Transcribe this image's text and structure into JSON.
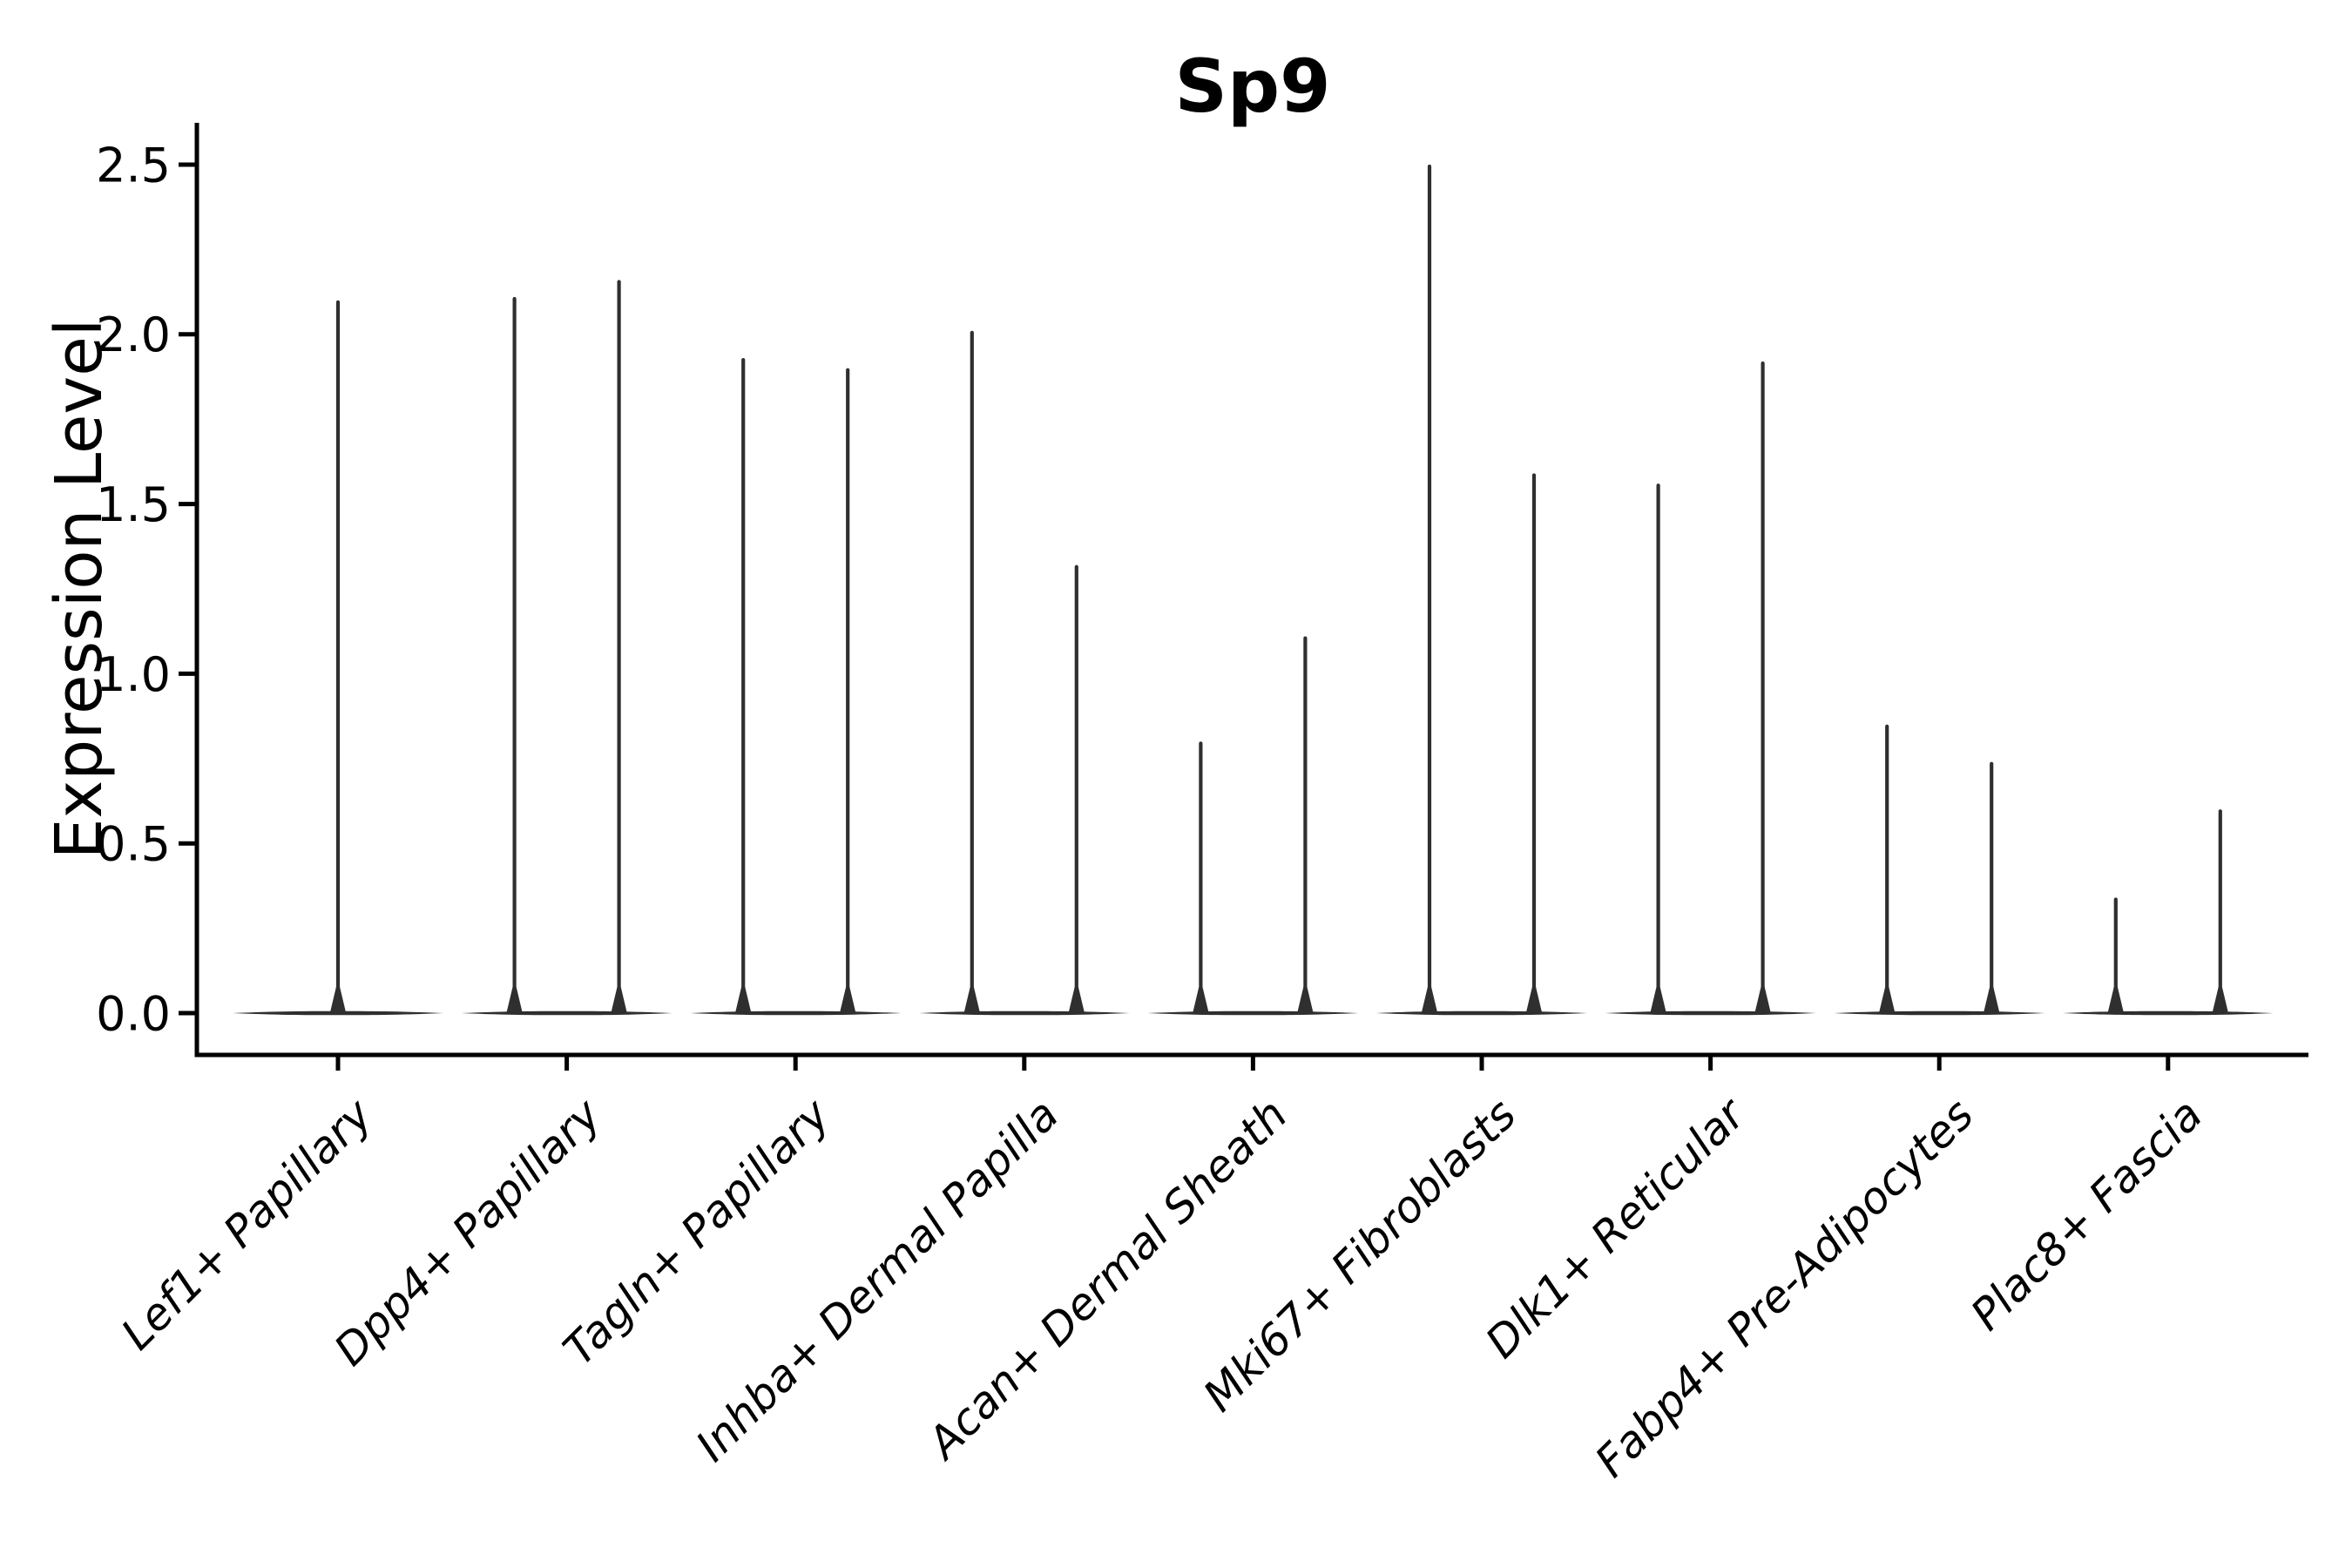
{
  "chart_data": {
    "type": "violin",
    "title": "Sp9",
    "xlabel": "",
    "ylabel": "Expression Level",
    "ytick_labels": [
      "0.0",
      "0.5",
      "1.0",
      "1.5",
      "2.0",
      "2.5"
    ],
    "ytick_values": [
      0.0,
      0.5,
      1.0,
      1.5,
      2.0,
      2.5
    ],
    "ylim": [
      -0.12,
      2.75
    ],
    "grid": false,
    "legend": "none",
    "description": "Single-cell expression violin plot; each category shows needle-thin violins (dense mass at 0 with a thin spike to the maximum expression value)",
    "categories": [
      "Lef1+ Papillary",
      "Dpp4+ Papillary",
      "Tagln+ Papillary",
      "Inhba+ Dermal Papilla",
      "Acan+ Dermal Sheath",
      "Mki67+ Fibroblasts",
      "Dlk1+ Reticular",
      "Fabp4+ Pre-Adipocytes",
      "Plac8+ Fascia"
    ],
    "violin_maxima_per_category": [
      [
        2.1
      ],
      [
        2.11,
        2.16
      ],
      [
        1.93,
        1.9
      ],
      [
        2.01,
        1.32
      ],
      [
        0.8,
        1.11
      ],
      [
        2.5,
        1.59
      ],
      [
        1.56,
        1.92
      ],
      [
        0.85,
        0.74
      ],
      [
        0.34,
        0.6
      ]
    ],
    "colors": {
      "violin": "#2f2f2f",
      "axis": "#000000",
      "text": "#000000",
      "background": "#ffffff"
    }
  }
}
